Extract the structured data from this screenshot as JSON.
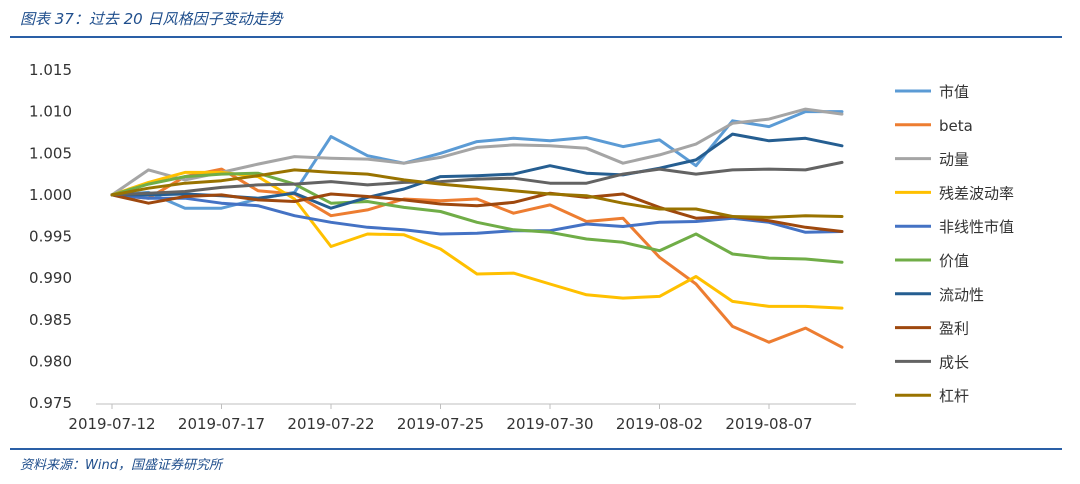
{
  "header": {
    "title": "图表 37：过去 20 日风格因子变动走势"
  },
  "footer": {
    "source": "资料来源：Wind，国盛证券研究所"
  },
  "chart_data": {
    "type": "line",
    "title": "",
    "xlabel": "",
    "ylabel": "",
    "ylim": [
      0.975,
      1.015
    ],
    "yticks": [
      "0.975",
      "0.980",
      "0.985",
      "0.990",
      "0.995",
      "1.000",
      "1.005",
      "1.010",
      "1.015"
    ],
    "grid": false,
    "legend": "right",
    "x": [
      "2019-07-12",
      "2019-07-15",
      "2019-07-16",
      "2019-07-17",
      "2019-07-18",
      "2019-07-19",
      "2019-07-22",
      "2019-07-23",
      "2019-07-24",
      "2019-07-25",
      "2019-07-26",
      "2019-07-29",
      "2019-07-30",
      "2019-07-31",
      "2019-08-01",
      "2019-08-02",
      "2019-08-05",
      "2019-08-06",
      "2019-08-07",
      "2019-08-08",
      "2019-08-09"
    ],
    "xtick_labels": [
      "2019-07-12",
      "2019-07-17",
      "2019-07-22",
      "2019-07-25",
      "2019-07-30",
      "2019-08-02",
      "2019-08-07"
    ],
    "series": [
      {
        "name": "市值",
        "color": "#5b9bd5",
        "values": [
          1.0,
          1.0003,
          0.9984,
          0.9984,
          0.9995,
          1.0003,
          1.007,
          1.0047,
          1.0038,
          1.005,
          1.0064,
          1.0068,
          1.0065,
          1.0069,
          1.0058,
          1.0066,
          1.0035,
          1.0089,
          1.0082,
          1.01,
          1.01
        ]
      },
      {
        "name": "beta",
        "color": "#ed7d31",
        "values": [
          1.0,
          0.9996,
          1.0022,
          1.0031,
          1.0005,
          1.0001,
          0.9975,
          0.9982,
          0.9995,
          0.9993,
          0.9995,
          0.9978,
          0.9988,
          0.9968,
          0.9972,
          0.9925,
          0.9893,
          0.9842,
          0.9823,
          0.984,
          0.9817
        ]
      },
      {
        "name": "动量",
        "color": "#a5a5a5",
        "values": [
          1.0,
          1.003,
          1.0018,
          1.0027,
          1.0037,
          1.0046,
          1.0044,
          1.0043,
          1.0038,
          1.0045,
          1.0057,
          1.006,
          1.0059,
          1.0056,
          1.0038,
          1.0048,
          1.0061,
          1.0086,
          1.0091,
          1.0103,
          1.0097
        ]
      },
      {
        "name": "残差波动率",
        "color": "#ffc000",
        "values": [
          1.0,
          1.0015,
          1.0027,
          1.0027,
          1.0022,
          0.9995,
          0.9938,
          0.9953,
          0.9952,
          0.9935,
          0.9905,
          0.9906,
          0.9893,
          0.988,
          0.9876,
          0.9878,
          0.9902,
          0.9872,
          0.9866,
          0.9866,
          0.9864
        ]
      },
      {
        "name": "非线性市值",
        "color": "#4472c4",
        "values": [
          1.0,
          0.9996,
          0.9996,
          0.999,
          0.9987,
          0.9975,
          0.9967,
          0.9961,
          0.9958,
          0.9953,
          0.9954,
          0.9957,
          0.9957,
          0.9965,
          0.9962,
          0.9967,
          0.9968,
          0.9972,
          0.9967,
          0.9955,
          0.9956
        ]
      },
      {
        "name": "价值",
        "color": "#70ad47",
        "values": [
          1.0,
          1.0013,
          1.0022,
          1.0025,
          1.0026,
          1.0013,
          0.999,
          0.9992,
          0.9985,
          0.998,
          0.9967,
          0.9958,
          0.9955,
          0.9947,
          0.9943,
          0.9933,
          0.9953,
          0.9929,
          0.9924,
          0.9923,
          0.9919
        ]
      },
      {
        "name": "流动性",
        "color": "#255e91",
        "values": [
          1.0,
          1.0,
          1.0001,
          0.9999,
          0.9996,
          1.0002,
          0.9984,
          0.9997,
          1.0007,
          1.0022,
          1.0023,
          1.0025,
          1.0035,
          1.0026,
          1.0024,
          1.0032,
          1.0042,
          1.0073,
          1.0065,
          1.0068,
          1.0059
        ]
      },
      {
        "name": "盈利",
        "color": "#9e480e",
        "values": [
          1.0,
          0.999,
          0.9998,
          1.0,
          0.9994,
          0.9992,
          1.0001,
          0.9998,
          0.9994,
          0.9989,
          0.9987,
          0.9991,
          1.0002,
          0.9997,
          1.0001,
          0.9985,
          0.9972,
          0.9974,
          0.9969,
          0.9961,
          0.9956
        ]
      },
      {
        "name": "成长",
        "color": "#636363",
        "values": [
          1.0,
          1.0002,
          1.0004,
          1.0009,
          1.0012,
          1.0013,
          1.0016,
          1.0012,
          1.0015,
          1.0016,
          1.0019,
          1.002,
          1.0014,
          1.0014,
          1.0025,
          1.0031,
          1.0025,
          1.003,
          1.0031,
          1.003,
          1.0039
        ]
      },
      {
        "name": "杠杆",
        "color": "#997300",
        "values": [
          1.0,
          1.0008,
          1.0014,
          1.0017,
          1.0023,
          1.003,
          1.0027,
          1.0025,
          1.0018,
          1.0013,
          1.0009,
          1.0005,
          1.0001,
          0.9999,
          0.999,
          0.9983,
          0.9983,
          0.9974,
          0.9973,
          0.9975,
          0.9974
        ]
      }
    ]
  }
}
